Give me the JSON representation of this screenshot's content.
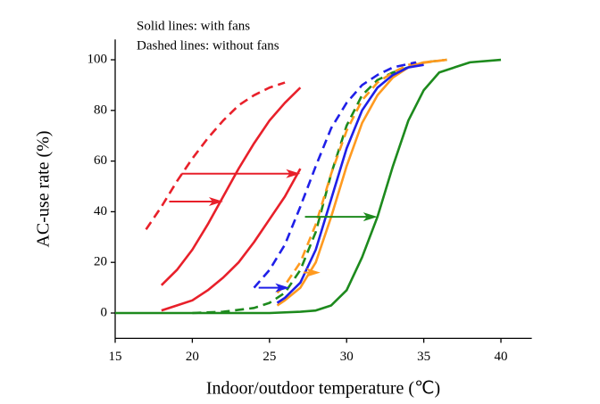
{
  "chart_data": {
    "type": "line",
    "annotations": [
      "Solid lines: with fans",
      "Dashed lines: without fans"
    ],
    "x_label": "Indoor/outdoor temperature (℃)",
    "y_label": "AC-use rate (%)",
    "xlim": [
      15,
      42
    ],
    "ylim": [
      -10,
      108
    ],
    "xticks": [
      15,
      20,
      25,
      30,
      35,
      40
    ],
    "yticks": [
      0,
      20,
      40,
      60,
      80,
      100
    ],
    "series": [
      {
        "color": "#e8202a",
        "dashed": true,
        "x": [
          17,
          18,
          19,
          20,
          21,
          22,
          23,
          24,
          25,
          26
        ],
        "values": [
          33,
          42,
          52,
          61,
          69,
          76,
          82,
          86,
          89,
          91
        ]
      },
      {
        "color": "#e8202a",
        "dashed": false,
        "x": [
          18,
          19,
          20,
          21,
          22,
          23,
          24,
          25,
          26,
          27
        ],
        "values": [
          11,
          17,
          25,
          35,
          46,
          57,
          67,
          76,
          83,
          89
        ]
      },
      {
        "color": "#e8202a",
        "dashed": false,
        "x": [
          18,
          19,
          20,
          21,
          22,
          23,
          24,
          25,
          26,
          27
        ],
        "values": [
          1,
          3,
          5,
          9,
          14,
          20,
          28,
          37,
          46,
          57
        ]
      },
      {
        "color": "#1d8a1d",
        "dashed": true,
        "x": [
          20,
          22,
          24,
          25,
          26,
          27,
          28,
          29,
          30,
          31,
          32,
          33,
          34,
          35,
          36.5
        ],
        "values": [
          0,
          0.5,
          2,
          4,
          8,
          17,
          32,
          55,
          74,
          86,
          92,
          95,
          97,
          99,
          100
        ]
      },
      {
        "color": "#ff9a1f",
        "dashed": true,
        "x": [
          25.5,
          26,
          27,
          28,
          29,
          30,
          31,
          32,
          33,
          34,
          36.5
        ],
        "values": [
          8,
          11,
          20,
          35,
          55,
          72,
          84,
          91,
          95,
          98,
          100
        ]
      },
      {
        "color": "#1f1fe8",
        "dashed": true,
        "x": [
          24,
          25,
          26,
          27,
          28,
          29,
          30,
          31,
          32,
          33,
          34.5
        ],
        "values": [
          10,
          17,
          27,
          42,
          58,
          73,
          83,
          90,
          94,
          97,
          99
        ]
      },
      {
        "color": "#ff9a1f",
        "dashed": false,
        "x": [
          25.5,
          26,
          27,
          28,
          29,
          30,
          31,
          32,
          33,
          34,
          35,
          36.5
        ],
        "values": [
          3,
          5,
          10,
          20,
          38,
          58,
          75,
          86,
          93,
          97,
          99,
          100
        ]
      },
      {
        "color": "#1f1fe8",
        "dashed": false,
        "x": [
          25.5,
          26,
          27,
          28,
          29,
          30,
          31,
          32,
          33,
          34,
          35
        ],
        "values": [
          4,
          6,
          12,
          25,
          45,
          65,
          80,
          89,
          94,
          97,
          98
        ]
      },
      {
        "color": "#1d8a1d",
        "dashed": false,
        "x": [
          15,
          20,
          25,
          27,
          28,
          29,
          30,
          31,
          32,
          33,
          34,
          35,
          36,
          38,
          40
        ],
        "values": [
          0,
          0,
          0,
          0.5,
          1,
          3,
          9,
          22,
          38,
          58,
          76,
          88,
          95,
          99,
          100
        ]
      }
    ],
    "arrows": [
      {
        "color": "#e8202a",
        "x": [
          18.5,
          22
        ],
        "y": 44
      },
      {
        "color": "#e8202a",
        "x": [
          19.3,
          27
        ],
        "y": 55
      },
      {
        "color": "#1d8a1d",
        "x": [
          27.3,
          32
        ],
        "y": 38
      },
      {
        "color": "#ff9a1f",
        "x": [
          27.2,
          28.3
        ],
        "y": 16
      },
      {
        "color": "#1f1fe8",
        "x": [
          24.3,
          26.3
        ],
        "y": 10
      }
    ]
  }
}
